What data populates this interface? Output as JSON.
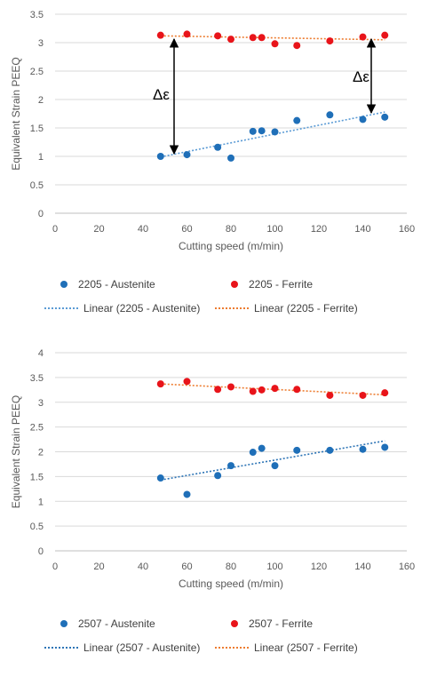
{
  "chart_data": [
    {
      "type": "scatter",
      "xlabel": "Cutting speed (m/min)",
      "ylabel": "Equivalent Strain PEEQ",
      "xlim": [
        0,
        160
      ],
      "ylim": [
        0,
        3.5
      ],
      "xticks": [
        "0",
        "20",
        "40",
        "60",
        "80",
        "100",
        "120",
        "140",
        "160"
      ],
      "yticks": [
        "0",
        "0.5",
        "1",
        "1.5",
        "2",
        "2.5",
        "3",
        "3.5"
      ],
      "annotation": "Δε",
      "grid": true,
      "legend_position": "bottom",
      "series": [
        {
          "name": "2205 - Austenite",
          "color": "#1f6fb8",
          "x": [
            48,
            60,
            74,
            80,
            90,
            94,
            100,
            110,
            125,
            140,
            150
          ],
          "y": [
            1.0,
            1.03,
            1.16,
            0.97,
            1.44,
            1.45,
            1.43,
            1.63,
            1.73,
            1.65,
            1.69
          ]
        },
        {
          "name": "2205 - Ferrite",
          "color": "#e8141a",
          "x": [
            48,
            60,
            74,
            80,
            90,
            94,
            100,
            110,
            125,
            140,
            150
          ],
          "y": [
            3.13,
            3.15,
            3.12,
            3.06,
            3.09,
            3.09,
            2.98,
            2.95,
            3.03,
            3.1,
            3.13
          ]
        }
      ],
      "trendlines": [
        {
          "name": "Linear (2205 - Austenite)",
          "color": "#5b9bd5",
          "from": [
            48,
            0.99
          ],
          "to": [
            150,
            1.78
          ]
        },
        {
          "name": "Linear (2205 - Ferrite)",
          "color": "#ed7d31",
          "from": [
            48,
            3.12
          ],
          "to": [
            150,
            3.05
          ]
        }
      ]
    },
    {
      "type": "scatter",
      "xlabel": "Cutting speed (m/min)",
      "ylabel": "Equivalent Strain PEEQ",
      "xlim": [
        0,
        160
      ],
      "ylim": [
        0,
        4
      ],
      "xticks": [
        "0",
        "20",
        "40",
        "60",
        "80",
        "100",
        "120",
        "140",
        "160"
      ],
      "yticks": [
        "0",
        "0.5",
        "1",
        "1.5",
        "2",
        "2.5",
        "3",
        "3.5",
        "4"
      ],
      "grid": true,
      "legend_position": "bottom",
      "series": [
        {
          "name": "2507 - Austenite",
          "color": "#1f6fb8",
          "x": [
            48,
            60,
            74,
            80,
            90,
            94,
            100,
            110,
            125,
            140,
            150
          ],
          "y": [
            1.47,
            1.14,
            1.52,
            1.72,
            1.99,
            2.07,
            1.72,
            2.03,
            2.03,
            2.05,
            2.09
          ]
        },
        {
          "name": "2507 - Ferrite",
          "color": "#e8141a",
          "x": [
            48,
            60,
            74,
            80,
            90,
            94,
            100,
            110,
            125,
            140,
            150
          ],
          "y": [
            3.37,
            3.42,
            3.26,
            3.31,
            3.22,
            3.25,
            3.28,
            3.26,
            3.14,
            3.14,
            3.19
          ]
        }
      ],
      "trendlines": [
        {
          "name": "Linear (2507 - Austenite)",
          "color": "#2e75b6",
          "from": [
            48,
            1.43
          ],
          "to": [
            150,
            2.22
          ]
        },
        {
          "name": "Linear (2507 - Ferrite)",
          "color": "#ed7d31",
          "from": [
            48,
            3.37
          ],
          "to": [
            150,
            3.15
          ]
        }
      ]
    }
  ]
}
